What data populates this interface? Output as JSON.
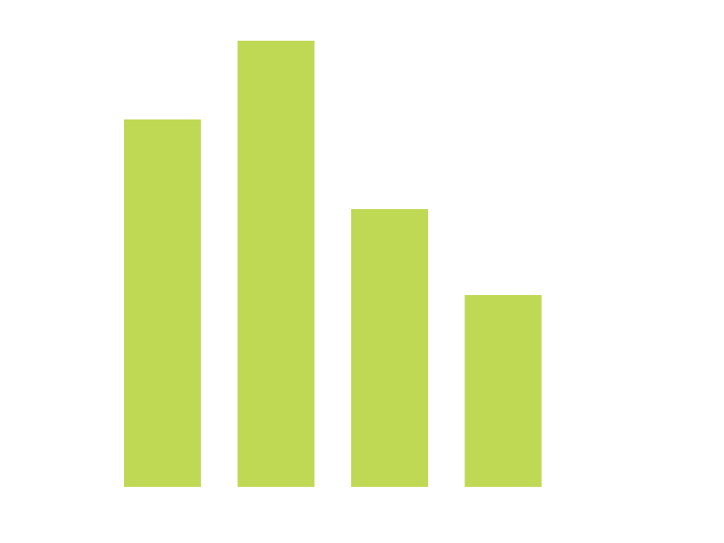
{
  "chart_data": {
    "type": "bar",
    "categories": [
      null,
      null,
      null,
      null
    ],
    "values": [
      406,
      493,
      307,
      212
    ],
    "color": "#c0d955",
    "ylim": [
      0,
      500
    ]
  }
}
